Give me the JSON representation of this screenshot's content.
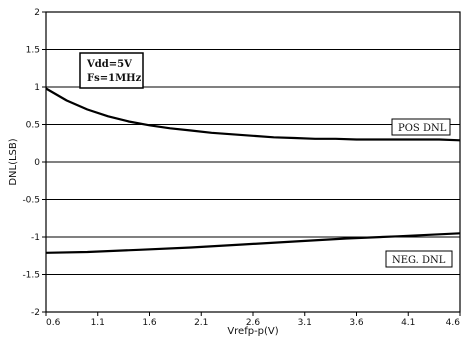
{
  "chart_data": {
    "type": "line",
    "xlabel": "Vrefp-p(V)",
    "ylabel": "DNL(LSB)",
    "xlim": [
      0.6,
      4.6
    ],
    "ylim": [
      -2,
      2
    ],
    "x_ticks": [
      "0.6",
      "1.1",
      "1.6",
      "2.1",
      "2.6",
      "3.1",
      "3.6",
      "4.1",
      "4.6"
    ],
    "y_ticks": [
      "2",
      "1.5",
      "1",
      "0.5",
      "0",
      "-0.5",
      "-1",
      "-1.5",
      "-2"
    ],
    "grid": "horizontal",
    "annotation_lines": [
      "Vdd=5V",
      "Fs=1MHz"
    ],
    "series": [
      {
        "name": "POS DNL",
        "x": [
          0.6,
          0.8,
          1.0,
          1.2,
          1.4,
          1.6,
          1.8,
          2.0,
          2.2,
          2.4,
          2.6,
          2.8,
          3.0,
          3.2,
          3.4,
          3.6,
          3.8,
          4.0,
          4.2,
          4.4,
          4.6
        ],
        "values": [
          0.98,
          0.82,
          0.7,
          0.61,
          0.54,
          0.49,
          0.45,
          0.42,
          0.39,
          0.37,
          0.35,
          0.33,
          0.32,
          0.31,
          0.31,
          0.3,
          0.3,
          0.3,
          0.3,
          0.3,
          0.29
        ]
      },
      {
        "name": "NEG. DNL",
        "x": [
          0.6,
          1.0,
          1.5,
          2.0,
          2.5,
          3.0,
          3.5,
          4.0,
          4.6
        ],
        "values": [
          -1.21,
          -1.2,
          -1.17,
          -1.14,
          -1.1,
          -1.06,
          -1.02,
          -0.99,
          -0.95
        ]
      }
    ]
  }
}
